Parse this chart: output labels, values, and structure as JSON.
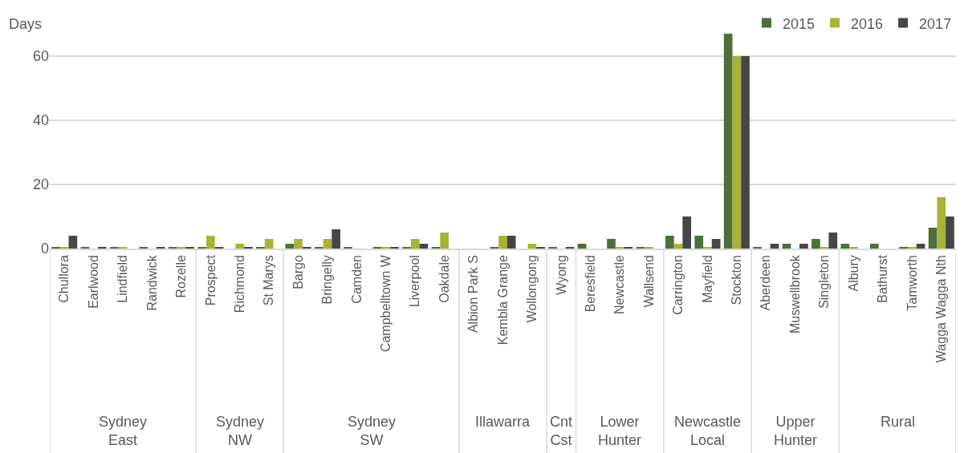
{
  "chart_data": {
    "type": "bar",
    "ylabel": "Days",
    "categories": [
      "Chullora",
      "Earlwood",
      "Lindfield",
      "Randwick",
      "Rozelle",
      "Prospect",
      "Richmond",
      "St Marys",
      "Bargo",
      "Bringelly",
      "Camden",
      "Campbelltown W",
      "Liverpool",
      "Oakdale",
      "Albion Park S",
      "Kembla Grange",
      "Wollongong",
      "Wyong",
      "Beresfield",
      "Newcastle",
      "Wallsend",
      "Carrington",
      "Mayfield",
      "Stockton",
      "Aberdeen",
      "Muswellbrook",
      "Singleton",
      "Albury",
      "Bathurst",
      "Tamworth",
      "Wagga Wagga Nth"
    ],
    "series": [
      {
        "name": "2015",
        "color": "#4e6e3a",
        "values": [
          0.5,
          0.5,
          0.5,
          0.5,
          0.5,
          0.5,
          0,
          0.5,
          1.5,
          0.5,
          0.5,
          0.5,
          0.5,
          0.5,
          0,
          0.5,
          0,
          0.5,
          1.5,
          3,
          0.5,
          4,
          4,
          67,
          0.5,
          1.5,
          3,
          1.5,
          1.5,
          0.5,
          6.5
        ]
      },
      {
        "name": "2016",
        "color": "#a9b334",
        "values": [
          0.5,
          0,
          0.5,
          0,
          0.5,
          4,
          1.5,
          3,
          3,
          3,
          0,
          0.5,
          3,
          5,
          0,
          4,
          1.5,
          0,
          0,
          0.5,
          0.5,
          1.5,
          0.5,
          60,
          0,
          0,
          0.5,
          0.5,
          0,
          0.5,
          16
        ]
      },
      {
        "name": "2017",
        "color": "#464646",
        "values": [
          4,
          0.5,
          0,
          0.5,
          0.5,
          0.5,
          0.5,
          0,
          0.5,
          6,
          0,
          0.5,
          1.5,
          0,
          0,
          4,
          0.5,
          0.5,
          0,
          0.5,
          0,
          10,
          3,
          60,
          1.5,
          1.5,
          5,
          0,
          0,
          1.5,
          10
        ]
      }
    ],
    "ylim": [
      0,
      67
    ],
    "yticks": [
      0,
      20,
      40,
      60
    ],
    "grid": "y",
    "legend": "top right",
    "annotations": [
      "Sydney East",
      "Sydney NW",
      "Sydney SW",
      "Illawarra",
      "Cnt Cst",
      "Lower Hunter",
      "Newcastle Local",
      "Upper Hunter",
      "Rural"
    ]
  }
}
